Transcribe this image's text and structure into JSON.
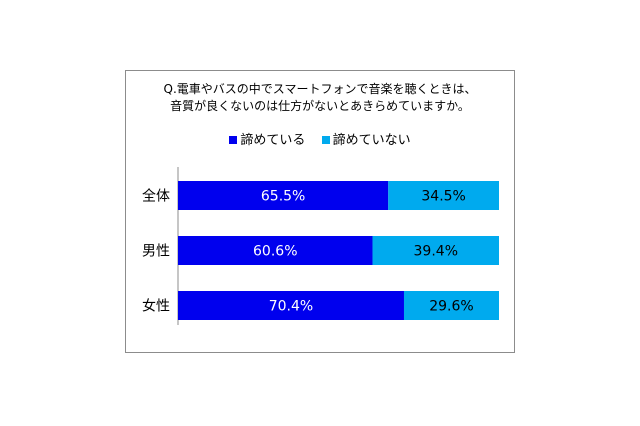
{
  "chart_data": {
    "type": "bar",
    "stacked": true,
    "orientation": "horizontal",
    "title_lines": [
      "Q.電車やバスの中でスマートフォンで音楽を聴くときは、",
      "音質が良くないのは仕方がないとあきらめていますか。"
    ],
    "categories": [
      "全体",
      "男性",
      "女性"
    ],
    "series": [
      {
        "name": "諦めている",
        "values": [
          65.5,
          60.6,
          70.4
        ],
        "color": "#0000ee"
      },
      {
        "name": "諦めていない",
        "values": [
          34.5,
          39.4,
          29.6
        ],
        "color": "#00aaee"
      }
    ],
    "data_labels": [
      [
        "65.5%",
        "60.6%",
        "70.4%"
      ],
      [
        "34.5%",
        "39.4%",
        "29.6%"
      ]
    ],
    "xlim": [
      0,
      100
    ],
    "legend_position": "top",
    "grid": false
  }
}
